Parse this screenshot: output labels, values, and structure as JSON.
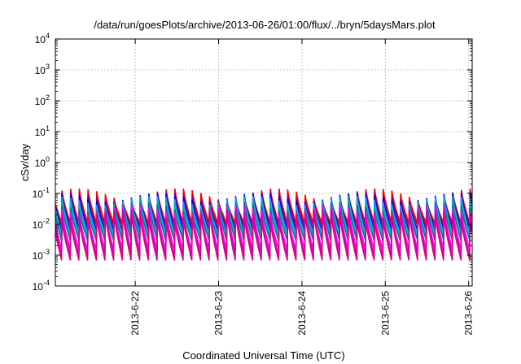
{
  "chart_data": {
    "type": "line",
    "title": "/data/run/goesPlots/archive/2013-06-26/01:00/flux/../bryn/5daysMars.plot",
    "xlabel": "Coordinated Universal Time (UTC)",
    "ylabel": "cSv/day",
    "yscale": "log",
    "ylim": [
      0.0001,
      10000
    ],
    "xlim": [
      "2013-06-21 01:00",
      "2013-06-26 01:00"
    ],
    "grid": true,
    "legend": "none",
    "y_ticks": [
      {
        "base": "10",
        "exp": "-4"
      },
      {
        "base": "10",
        "exp": "-3"
      },
      {
        "base": "10",
        "exp": "-2"
      },
      {
        "base": "10",
        "exp": "-1"
      },
      {
        "base": "10",
        "exp": "0"
      },
      {
        "base": "10",
        "exp": "1"
      },
      {
        "base": "10",
        "exp": "2"
      },
      {
        "base": "10",
        "exp": "3"
      },
      {
        "base": "10",
        "exp": "4"
      }
    ],
    "x_ticks": [
      {
        "label": "2013-6-22",
        "t": "2013-06-22 00:00"
      },
      {
        "label": "2013-6-23",
        "t": "2013-06-23 00:00"
      },
      {
        "label": "2013-6-24",
        "t": "2013-06-24 00:00"
      },
      {
        "label": "2013-6-25",
        "t": "2013-06-25 00:00"
      },
      {
        "label": "2013-6-26",
        "t": "2013-06-26 00:00"
      }
    ],
    "cycle_hours": 2.5,
    "series": [
      {
        "color": "#ff0000",
        "peak": [
          0.055,
          0.14
        ],
        "trough": 0.011
      },
      {
        "color": "#b00040",
        "peak": [
          0.045,
          0.11
        ],
        "trough": 0.009
      },
      {
        "color": "#8000ff",
        "peak": [
          0.035,
          0.085
        ],
        "trough": 0.007
      },
      {
        "color": "#0000ff",
        "peak": [
          0.05,
          0.1
        ],
        "trough": 0.006
      },
      {
        "color": "#00a0ff",
        "peak": [
          0.04,
          0.08
        ],
        "trough": 0.005
      },
      {
        "color": "#00c0a0",
        "peak": [
          0.03,
          0.06
        ],
        "trough": 0.004
      },
      {
        "color": "#008080",
        "peak": [
          0.025,
          0.05
        ],
        "trough": 0.003
      },
      {
        "color": "#ff00ff",
        "peak": [
          0.02,
          0.04
        ],
        "trough": 0.0015
      },
      {
        "color": "#d000d0",
        "peak": [
          0.015,
          0.03
        ],
        "trough": 0.001
      },
      {
        "color": "#e00080",
        "peak": [
          0.012,
          0.025
        ],
        "trough": 0.0007
      }
    ]
  }
}
